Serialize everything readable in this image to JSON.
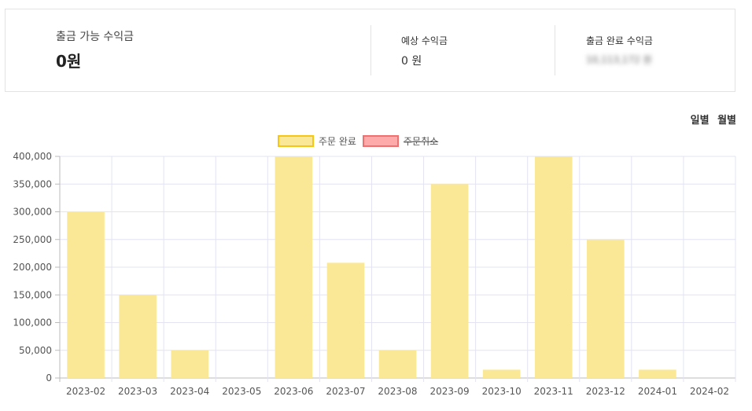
{
  "summary": {
    "withdrawable_label": "출금 가능 수익금",
    "withdrawable_value": "0원",
    "expected_label": "예상 수익금",
    "expected_value": "0 원",
    "completed_label": "출금 완료 수익금",
    "completed_value": "10,113,172 원"
  },
  "toggle": {
    "daily": "일별",
    "monthly": "월별"
  },
  "colors": {
    "completed_fill": "#fae896",
    "completed_border": "#f5c518",
    "cancelled_fill": "#ffaaaa",
    "cancelled_border": "#f07070",
    "grid": "#e3e3f3"
  },
  "chart_data": {
    "type": "bar",
    "categories": [
      "2023-02",
      "2023-03",
      "2023-04",
      "2023-05",
      "2023-06",
      "2023-07",
      "2023-08",
      "2023-09",
      "2023-10",
      "2023-11",
      "2023-12",
      "2024-01",
      "2024-02"
    ],
    "series": [
      {
        "name": "주문 완료",
        "values": [
          300000,
          150000,
          50000,
          0,
          400000,
          208000,
          50000,
          350000,
          15000,
          400000,
          250000,
          15000,
          0
        ],
        "hidden": false
      },
      {
        "name": "주문취소",
        "values": [
          0,
          0,
          0,
          0,
          0,
          0,
          0,
          0,
          0,
          0,
          0,
          0,
          0
        ],
        "hidden": true
      }
    ],
    "yticks": [
      "0",
      "50,000",
      "100,000",
      "150,000",
      "200,000",
      "250,000",
      "300,000",
      "350,000",
      "400,000"
    ],
    "ylim": [
      0,
      400000
    ],
    "grid": true,
    "legend_position": "top-center"
  }
}
